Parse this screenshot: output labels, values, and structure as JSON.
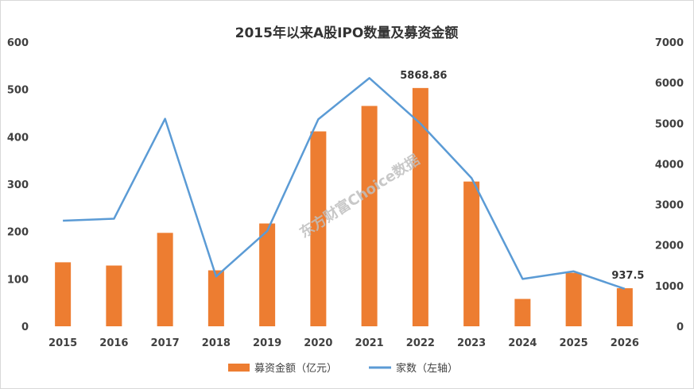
{
  "chart_data": {
    "type": "bar+line",
    "title": "2015年以来A股IPO数量及募资金额",
    "categories": [
      "2015",
      "2016",
      "2017",
      "2018",
      "2019",
      "2020",
      "2021",
      "2022",
      "2023",
      "2024",
      "2025",
      "2026"
    ],
    "series": [
      {
        "name": "募资金额（亿元）",
        "type": "bar",
        "axis": "right",
        "color": "#ED7D31",
        "values": [
          1576,
          1496,
          2301,
          1378,
          2532,
          4800,
          5427,
          5868.86,
          3565,
          674,
          1317,
          937.5
        ]
      },
      {
        "name": "家数（左轴）",
        "type": "line",
        "axis": "left",
        "color": "#5B9BD5",
        "values": [
          223,
          227,
          438,
          105,
          201,
          437,
          524,
          428,
          313,
          100,
          116,
          79
        ]
      }
    ],
    "y_left": {
      "ylim": [
        0,
        600
      ],
      "ticks": [
        "0",
        "100",
        "200",
        "300",
        "400",
        "500",
        "600"
      ]
    },
    "y_right": {
      "ylim": [
        0,
        7000
      ],
      "ticks": [
        "0",
        "1000",
        "2000",
        "3000",
        "4000",
        "5000",
        "6000",
        "7000"
      ]
    },
    "data_labels": [
      {
        "category": "2022",
        "text": "5868.86"
      },
      {
        "category": "2026",
        "text": "937.5"
      }
    ],
    "grid": false,
    "legend_position": "bottom"
  },
  "watermark": "东方财富Choice数据"
}
